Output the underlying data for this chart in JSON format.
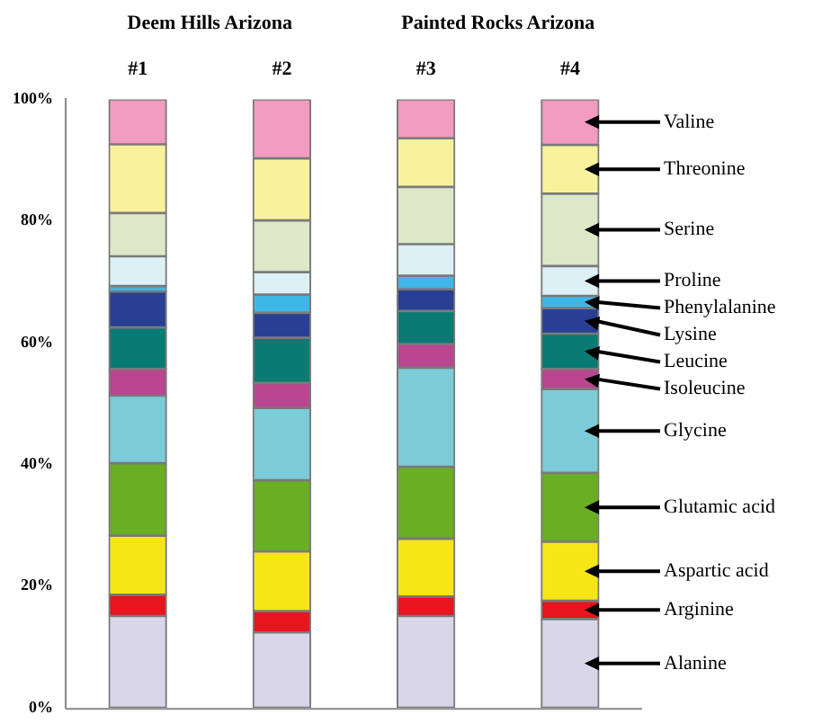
{
  "chart_data": {
    "type": "bar",
    "stacked": true,
    "categories": [
      "#1",
      "#2",
      "#3",
      "#4"
    ],
    "annotations": [
      "Deem Hills Arizona",
      "Painted Rocks Arizona"
    ],
    "ylim": [
      0,
      100
    ],
    "yticks": [
      {
        "value": 0,
        "label": "0%"
      },
      {
        "value": 20,
        "label": "20%"
      },
      {
        "value": 40,
        "label": "40%"
      },
      {
        "value": 60,
        "label": "60%"
      },
      {
        "value": 80,
        "label": "80%"
      },
      {
        "value": 100,
        "label": "100%"
      }
    ],
    "grid": false,
    "legend": false,
    "series": [
      {
        "name": "Alanine",
        "color": "#d9d6ea",
        "values": [
          15.1,
          12.4,
          15.1,
          14.6
        ]
      },
      {
        "name": "Arginine",
        "color": "#e8141e",
        "values": [
          3.5,
          3.5,
          3.2,
          3.0
        ]
      },
      {
        "name": "Aspartic acid",
        "color": "#f7e617",
        "values": [
          9.7,
          9.8,
          9.5,
          9.7
        ]
      },
      {
        "name": "Glutamic acid",
        "color": "#6aae24",
        "values": [
          11.9,
          11.7,
          11.8,
          11.3
        ]
      },
      {
        "name": "Glycine",
        "color": "#7ccbd8",
        "values": [
          11.1,
          11.9,
          16.3,
          13.8
        ]
      },
      {
        "name": "Isoleucine",
        "color": "#b9468f",
        "values": [
          4.4,
          4.1,
          3.9,
          3.3
        ]
      },
      {
        "name": "Leucine",
        "color": "#0a7a74",
        "values": [
          6.8,
          7.4,
          5.4,
          5.8
        ]
      },
      {
        "name": "Lysine",
        "color": "#283f93",
        "values": [
          5.9,
          4.1,
          3.6,
          4.2
        ]
      },
      {
        "name": "Phenylalanine",
        "color": "#3db8e6",
        "values": [
          0.9,
          3.0,
          2.2,
          2.0
        ]
      },
      {
        "name": "Proline",
        "color": "#dcf0f6",
        "values": [
          4.9,
          3.7,
          5.2,
          4.9
        ]
      },
      {
        "name": "Serine",
        "color": "#dce8c8",
        "values": [
          7.1,
          8.5,
          9.4,
          11.9
        ]
      },
      {
        "name": "Threonine",
        "color": "#f9f19c",
        "values": [
          11.3,
          10.2,
          8.0,
          8.0
        ]
      },
      {
        "name": "Valine",
        "color": "#f19bc0",
        "values": [
          7.4,
          9.7,
          6.4,
          7.5
        ]
      }
    ]
  }
}
